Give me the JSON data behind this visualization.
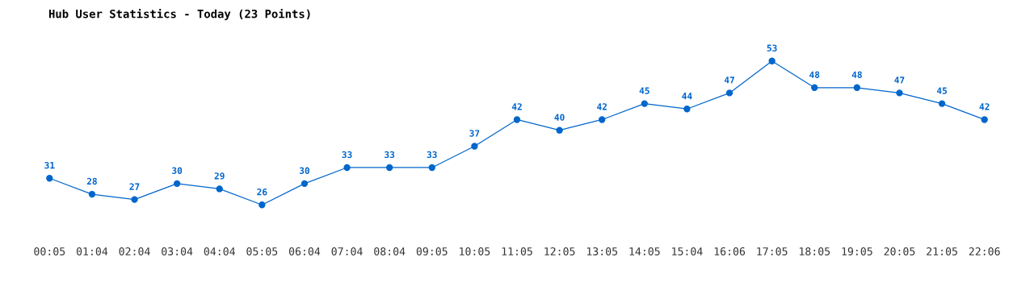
{
  "chart_data": {
    "type": "line",
    "title": "Hub User Statistics - Today (23 Points)",
    "categories": [
      "00:05",
      "01:04",
      "02:04",
      "03:04",
      "04:04",
      "05:05",
      "06:04",
      "07:04",
      "08:04",
      "09:05",
      "10:05",
      "11:05",
      "12:05",
      "13:05",
      "14:05",
      "15:04",
      "16:06",
      "17:05",
      "18:05",
      "19:05",
      "20:05",
      "21:05",
      "22:06"
    ],
    "series": [
      {
        "color": "#0066cc",
        "values": [
          31,
          28,
          27,
          30,
          29,
          26,
          30,
          33,
          33,
          33,
          37,
          42,
          40,
          42,
          45,
          44,
          47,
          53,
          48,
          48,
          47,
          45,
          42
        ]
      }
    ],
    "data_labels": true,
    "marker": "circle",
    "line_style": "solid",
    "grid": false,
    "legend": false,
    "tick_labels": "x"
  }
}
